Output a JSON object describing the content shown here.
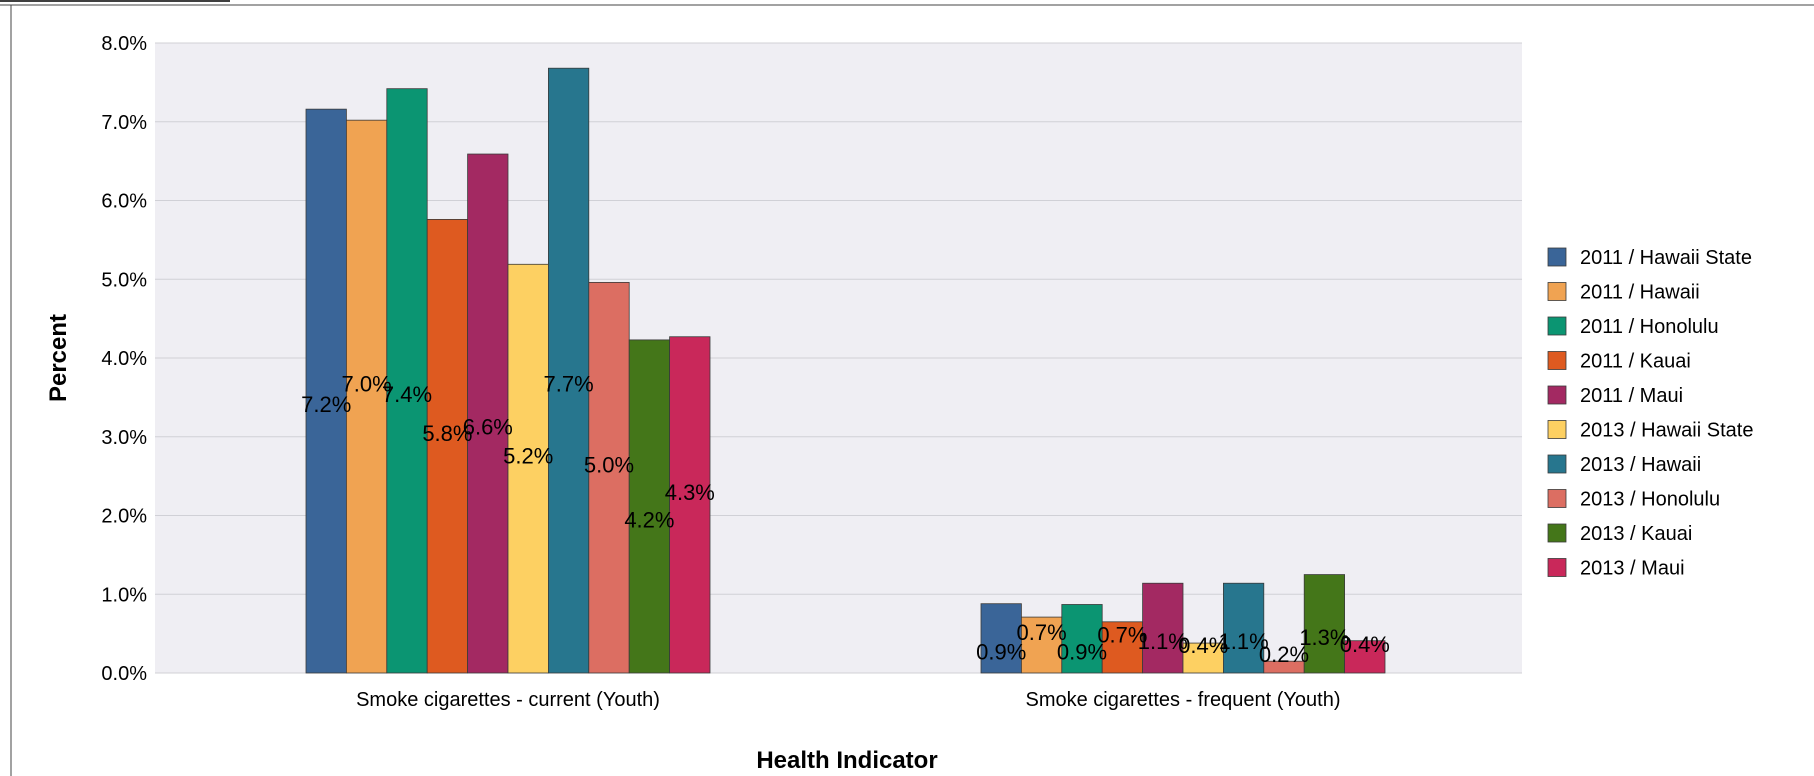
{
  "chart_data": {
    "type": "bar",
    "title": "",
    "xlabel": "Health Indicator",
    "ylabel": "Percent",
    "ylim": [
      0,
      8
    ],
    "y_ticks": [
      "0.0%",
      "1.0%",
      "2.0%",
      "3.0%",
      "4.0%",
      "5.0%",
      "6.0%",
      "7.0%",
      "8.0%"
    ],
    "grid": true,
    "legend_position": "right",
    "categories": [
      "Smoke cigarettes - current (Youth)",
      "Smoke cigarettes - frequent (Youth)"
    ],
    "series": [
      {
        "name": "2011 / Hawaii State",
        "color": "#3a6598",
        "values": [
          7.16,
          0.88
        ],
        "labels": [
          "7.2%",
          "0.9%"
        ]
      },
      {
        "name": "2011 / Hawaii",
        "color": "#f0a352",
        "values": [
          7.02,
          0.71
        ],
        "labels": [
          "7.0%",
          "0.7%"
        ]
      },
      {
        "name": "2011 / Honolulu",
        "color": "#0b9572",
        "values": [
          7.42,
          0.87
        ],
        "labels": [
          "7.4%",
          "0.9%"
        ]
      },
      {
        "name": "2011 / Kauai",
        "color": "#de5a20",
        "values": [
          5.76,
          0.65
        ],
        "labels": [
          "5.8%",
          "0.7%"
        ]
      },
      {
        "name": "2011 / Maui",
        "color": "#a32962",
        "values": [
          6.59,
          1.14
        ],
        "labels": [
          "6.6%",
          "1.1%"
        ]
      },
      {
        "name": "2013 / Hawaii State",
        "color": "#fdd062",
        "values": [
          5.19,
          0.38
        ],
        "labels": [
          "5.2%",
          "0.4%"
        ]
      },
      {
        "name": "2013 / Hawaii",
        "color": "#27768e",
        "values": [
          7.68,
          1.14
        ],
        "labels": [
          "7.7%",
          "1.1%"
        ]
      },
      {
        "name": "2013 / Honolulu",
        "color": "#dc6e62",
        "values": [
          4.96,
          0.15
        ],
        "labels": [
          "5.0%",
          "0.2%"
        ]
      },
      {
        "name": "2013 / Kauai",
        "color": "#447619",
        "values": [
          4.23,
          1.25
        ],
        "labels": [
          "4.2%",
          "1.3%"
        ]
      },
      {
        "name": "2013 / Maui",
        "color": "#c9285a",
        "values": [
          4.27,
          0.41
        ],
        "labels": [
          "4.3%",
          "0.4%"
        ]
      }
    ]
  }
}
